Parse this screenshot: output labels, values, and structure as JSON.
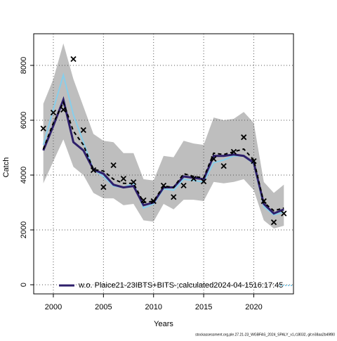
{
  "chart_data": {
    "type": "line",
    "xlabel": "Years",
    "ylabel": "Catch",
    "footer": "stockassessment.org,ple.27.21-23_WGBFAS_2024_SPALY_v1,r18032, git:e38aa2b49f80",
    "x": [
      1999,
      2000,
      2001,
      2002,
      2003,
      2004,
      2005,
      2006,
      2007,
      2008,
      2009,
      2010,
      2011,
      2012,
      2013,
      2014,
      2015,
      2016,
      2017,
      2018,
      2019,
      2020,
      2021,
      2022,
      2023
    ],
    "xlim": [
      1998.04,
      2023.96
    ],
    "xticks": [
      2000,
      2005,
      2010,
      2015,
      2020
    ],
    "ylim": [
      -333,
      9154
    ],
    "yticks": [
      0,
      2000,
      4000,
      6000,
      8000
    ],
    "grid": true,
    "legend": "bottom",
    "band": {
      "color": "#bebebe",
      "upper": [
        6600,
        7500,
        8800,
        7500,
        6500,
        5500,
        5250,
        5200,
        4800,
        4800,
        3850,
        3800,
        4700,
        4650,
        5250,
        5150,
        5100,
        6100,
        6000,
        6050,
        6300,
        5900,
        3750,
        3350,
        3650
      ],
      "lower": [
        3700,
        4500,
        5300,
        4300,
        4000,
        3350,
        3150,
        3150,
        2900,
        2950,
        2350,
        2300,
        2950,
        2750,
        3100,
        3100,
        3050,
        3750,
        3700,
        3750,
        3850,
        3450,
        2350,
        2050,
        2150
      ]
    },
    "series": [
      {
        "color": "#87ceeb",
        "width": 2,
        "dash": "none",
        "values": [
          5100,
          6400,
          7650,
          6200,
          5200,
          4200,
          3950,
          3600,
          3550,
          3700,
          2800,
          2950,
          3500,
          3450,
          3850,
          3800,
          3750,
          4450,
          4550,
          4700,
          4700,
          4400,
          2850,
          2550,
          2650
        ]
      },
      {
        "name": "w.o. Plaice21-23IBTS+BITS-;calculated2024-04-1516:17:45",
        "color": "#2e1f6b",
        "width": 3,
        "dash": "none",
        "values": [
          4900,
          5800,
          6750,
          5200,
          4900,
          4200,
          4050,
          3650,
          3550,
          3600,
          2900,
          3000,
          3550,
          3550,
          3950,
          3900,
          3850,
          4700,
          4700,
          4750,
          4700,
          4450,
          2950,
          2600,
          2750
        ]
      },
      {
        "color": "#000000",
        "width": 2,
        "dash": "5,4",
        "values": [
          4950,
          5900,
          6650,
          5600,
          5100,
          4200,
          4150,
          3850,
          3700,
          3700,
          3000,
          3050,
          3600,
          3550,
          4050,
          3950,
          3900,
          4800,
          4750,
          4850,
          4950,
          4550,
          3000,
          2700,
          2800
        ]
      }
    ],
    "observed": {
      "color": "#000000",
      "values": [
        5700,
        6280,
        6385,
        8230,
        5640,
        4180,
        3560,
        4360,
        3870,
        3740,
        3080,
        3050,
        3620,
        3200,
        3620,
        3870,
        3770,
        4590,
        4330,
        4850,
        5380,
        4510,
        3050,
        2280,
        2600
      ]
    }
  }
}
